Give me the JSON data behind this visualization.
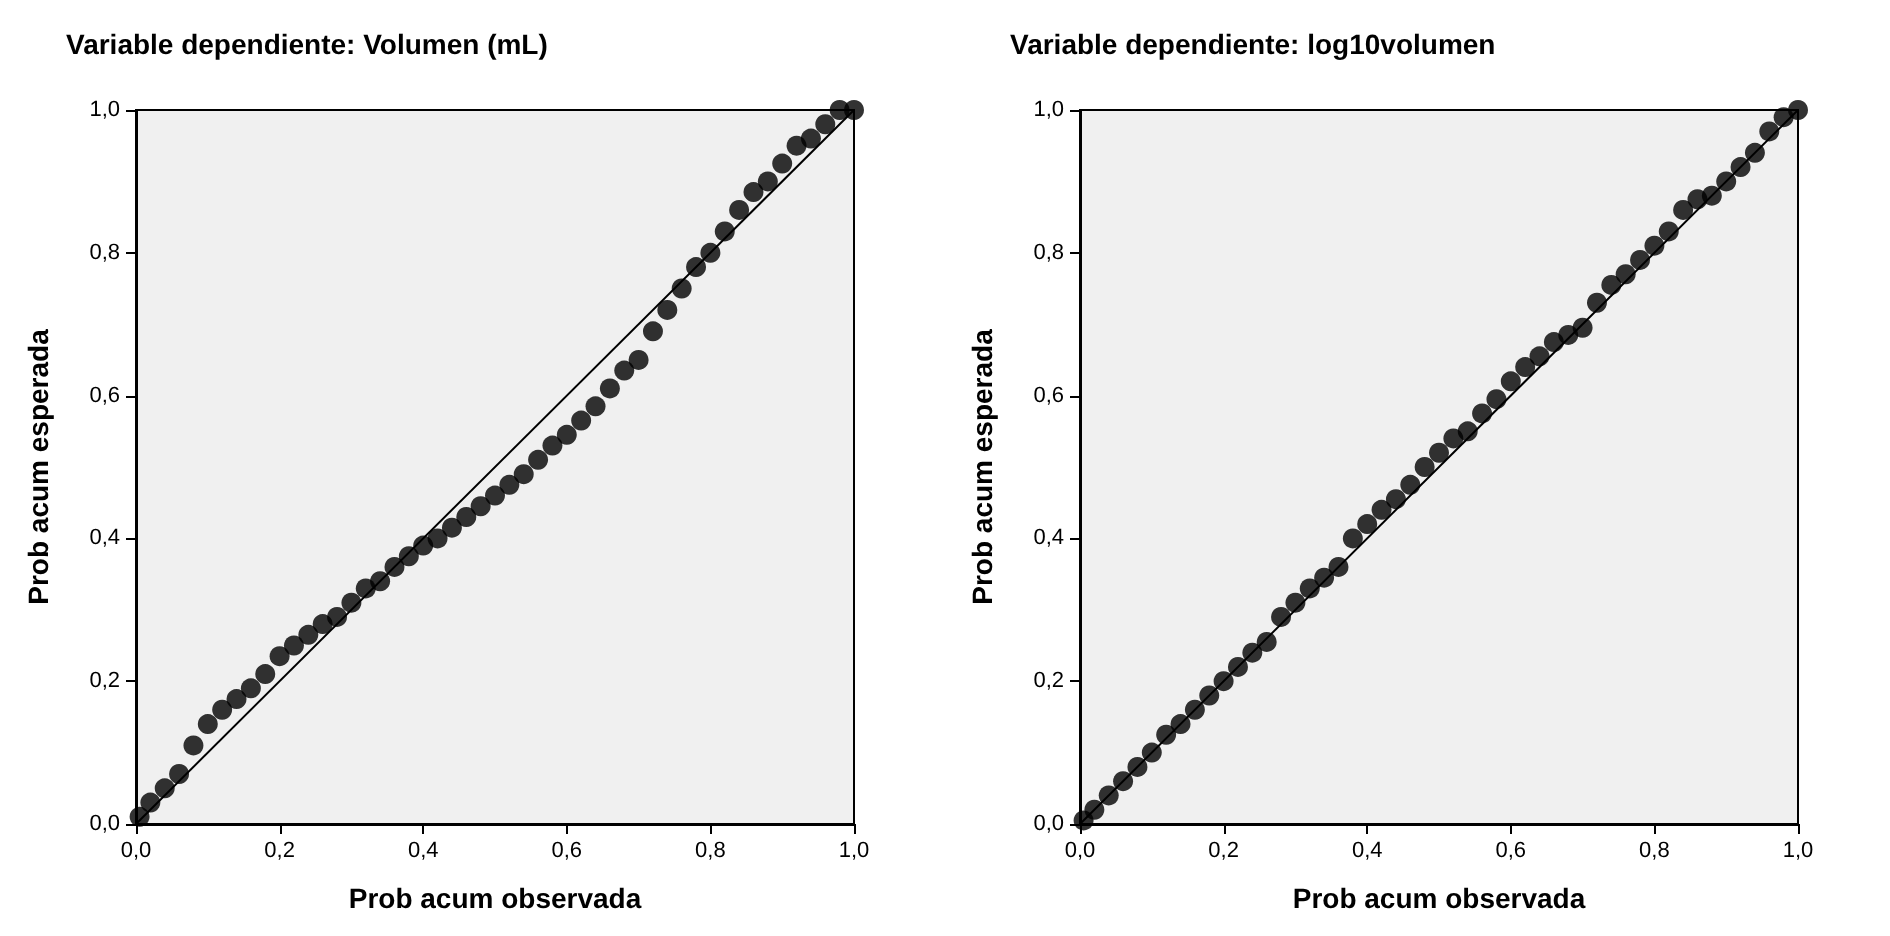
{
  "chart_data": [
    {
      "type": "scatter",
      "title": "Variable dependiente: Volumen (mL)",
      "xlabel": "Prob acum observada",
      "ylabel": "Prob acum esperada",
      "xlim": [
        0,
        1
      ],
      "ylim": [
        0,
        1
      ],
      "xticks": [
        {
          "value": 0,
          "label": "0,0"
        },
        {
          "value": 0.2,
          "label": "0,2"
        },
        {
          "value": 0.4,
          "label": "0,4"
        },
        {
          "value": 0.6,
          "label": "0,6"
        },
        {
          "value": 0.8,
          "label": "0,8"
        },
        {
          "value": 1,
          "label": "1,0"
        }
      ],
      "yticks": [
        {
          "value": 0,
          "label": "0,0"
        },
        {
          "value": 0.2,
          "label": "0,2"
        },
        {
          "value": 0.4,
          "label": "0,4"
        },
        {
          "value": 0.6,
          "label": "0,6"
        },
        {
          "value": 0.8,
          "label": "0,8"
        },
        {
          "value": 1,
          "label": "1,0"
        }
      ],
      "series": [
        {
          "marker": "circle",
          "color": "#000000",
          "x": [
            0.005,
            0.02,
            0.04,
            0.06,
            0.08,
            0.1,
            0.12,
            0.14,
            0.16,
            0.18,
            0.2,
            0.22,
            0.24,
            0.26,
            0.28,
            0.3,
            0.32,
            0.34,
            0.36,
            0.38,
            0.4,
            0.42,
            0.44,
            0.46,
            0.48,
            0.5,
            0.52,
            0.54,
            0.56,
            0.58,
            0.6,
            0.62,
            0.64,
            0.66,
            0.68,
            0.7,
            0.72,
            0.74,
            0.76,
            0.78,
            0.8,
            0.82,
            0.84,
            0.86,
            0.88,
            0.9,
            0.92,
            0.94,
            0.96,
            0.98,
            1.0
          ],
          "values": [
            0.01,
            0.03,
            0.05,
            0.07,
            0.11,
            0.14,
            0.16,
            0.175,
            0.19,
            0.21,
            0.235,
            0.25,
            0.265,
            0.28,
            0.29,
            0.31,
            0.33,
            0.34,
            0.36,
            0.375,
            0.39,
            0.4,
            0.415,
            0.43,
            0.445,
            0.46,
            0.475,
            0.49,
            0.51,
            0.53,
            0.545,
            0.565,
            0.585,
            0.61,
            0.635,
            0.65,
            0.69,
            0.72,
            0.75,
            0.78,
            0.8,
            0.83,
            0.86,
            0.885,
            0.9,
            0.925,
            0.95,
            0.96,
            0.98,
            1.0,
            1.0
          ]
        },
        {
          "type": "line",
          "color": "#000000",
          "x": [
            0,
            1
          ],
          "values": [
            0,
            1
          ]
        }
      ]
    },
    {
      "type": "scatter",
      "title": "Variable dependiente: log10volumen",
      "xlabel": "Prob acum observada",
      "ylabel": "Prob acum esperada",
      "xlim": [
        0,
        1
      ],
      "ylim": [
        0,
        1
      ],
      "xticks": [
        {
          "value": 0,
          "label": "0,0"
        },
        {
          "value": 0.2,
          "label": "0,2"
        },
        {
          "value": 0.4,
          "label": "0,4"
        },
        {
          "value": 0.6,
          "label": "0,6"
        },
        {
          "value": 0.8,
          "label": "0,8"
        },
        {
          "value": 1,
          "label": "1,0"
        }
      ],
      "yticks": [
        {
          "value": 0,
          "label": "0,0"
        },
        {
          "value": 0.2,
          "label": "0,2"
        },
        {
          "value": 0.4,
          "label": "0,4"
        },
        {
          "value": 0.6,
          "label": "0,6"
        },
        {
          "value": 0.8,
          "label": "0,8"
        },
        {
          "value": 1,
          "label": "1,0"
        }
      ],
      "series": [
        {
          "marker": "circle",
          "color": "#000000",
          "x": [
            0.005,
            0.02,
            0.04,
            0.06,
            0.08,
            0.1,
            0.12,
            0.14,
            0.16,
            0.18,
            0.2,
            0.22,
            0.24,
            0.26,
            0.28,
            0.3,
            0.32,
            0.34,
            0.36,
            0.38,
            0.4,
            0.42,
            0.44,
            0.46,
            0.48,
            0.5,
            0.52,
            0.54,
            0.56,
            0.58,
            0.6,
            0.62,
            0.64,
            0.66,
            0.68,
            0.7,
            0.72,
            0.74,
            0.76,
            0.78,
            0.8,
            0.82,
            0.84,
            0.86,
            0.88,
            0.9,
            0.92,
            0.94,
            0.96,
            0.98,
            1.0
          ],
          "values": [
            0.005,
            0.02,
            0.04,
            0.06,
            0.08,
            0.1,
            0.125,
            0.14,
            0.16,
            0.18,
            0.2,
            0.22,
            0.24,
            0.255,
            0.29,
            0.31,
            0.33,
            0.345,
            0.36,
            0.4,
            0.42,
            0.44,
            0.455,
            0.475,
            0.5,
            0.52,
            0.54,
            0.55,
            0.575,
            0.595,
            0.62,
            0.64,
            0.655,
            0.675,
            0.685,
            0.695,
            0.73,
            0.755,
            0.77,
            0.79,
            0.81,
            0.83,
            0.86,
            0.875,
            0.88,
            0.9,
            0.92,
            0.94,
            0.97,
            0.99,
            1.0
          ]
        },
        {
          "type": "line",
          "color": "#000000",
          "x": [
            0,
            1
          ],
          "values": [
            0,
            1
          ]
        }
      ]
    }
  ]
}
